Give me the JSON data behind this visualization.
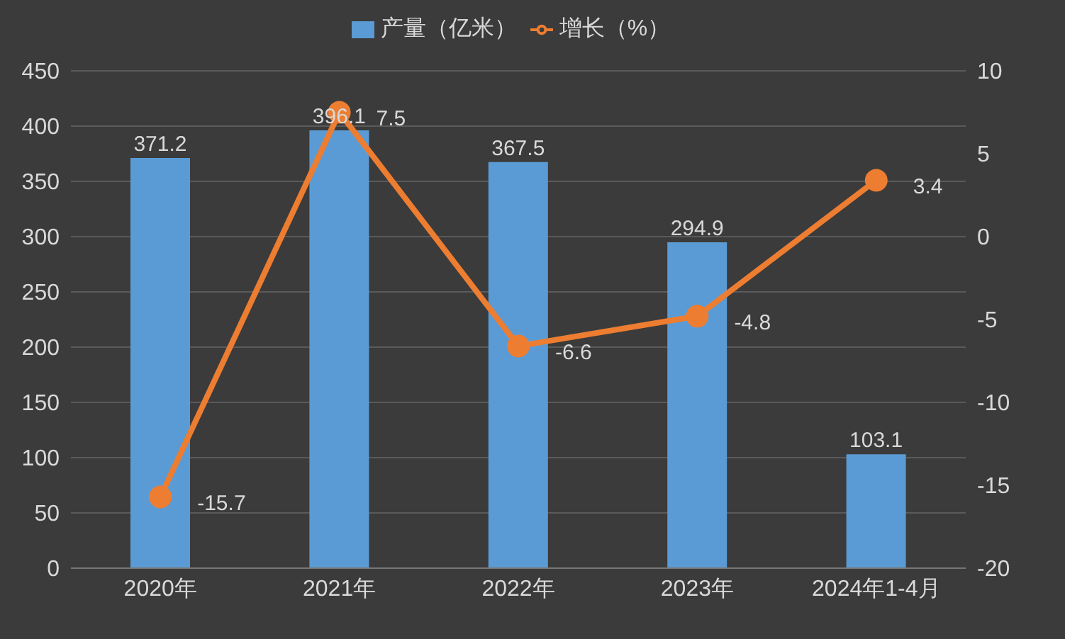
{
  "chart_data": {
    "type": "bar",
    "categories": [
      "2020年",
      "2021年",
      "2022年",
      "2023年",
      "2024年1-4月"
    ],
    "series": [
      {
        "name": "产量（亿米）",
        "color": "#5b9bd5",
        "values": [
          371.2,
          396.1,
          367.5,
          294.9,
          103.1
        ]
      },
      {
        "name": "增长（%）",
        "type": "line",
        "axis": "y2",
        "color": "#ed7d31",
        "values": [
          -15.7,
          7.5,
          -6.6,
          -4.8,
          3.4
        ]
      }
    ],
    "ylim": [
      0,
      450
    ],
    "yticks": [
      0,
      50,
      100,
      150,
      200,
      250,
      300,
      350,
      400,
      450
    ],
    "y2lim": [
      -20,
      10
    ],
    "y2ticks": [
      -20,
      -15,
      -10,
      -5,
      0,
      5,
      10
    ],
    "grid": "y",
    "legend": "top",
    "marker": "circle",
    "data_labels": true
  }
}
